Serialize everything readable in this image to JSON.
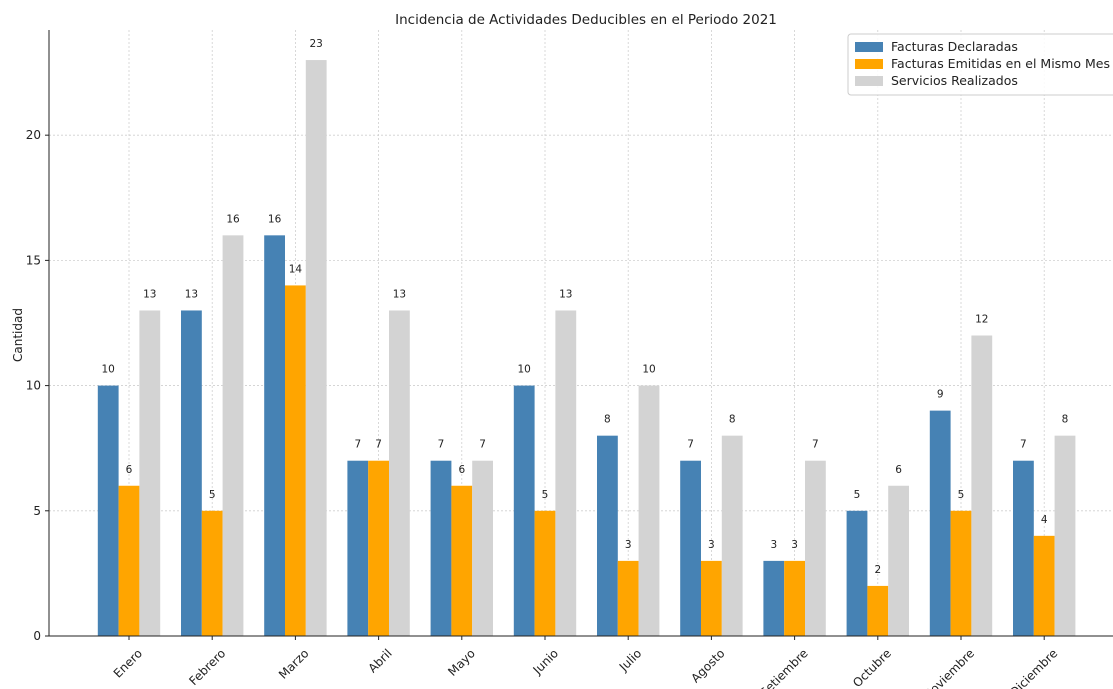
{
  "chart_data": {
    "type": "bar",
    "title": "Incidencia de Actividades Deducibles en el Periodo 2021",
    "xlabel": "",
    "ylabel": "Cantidad",
    "ylim": [
      0,
      24.2
    ],
    "yticks": [
      0,
      5,
      10,
      15,
      20
    ],
    "grid": true,
    "legend_position": "top-right",
    "categories": [
      "Enero",
      "Febrero",
      "Marzo",
      "Abril",
      "Mayo",
      "Junio",
      "Julio",
      "Agosto",
      "Setiembre",
      "Octubre",
      "Noviembre",
      "Diciembre"
    ],
    "series": [
      {
        "name": "Facturas Declaradas",
        "color": "#4682b4",
        "values": [
          10,
          13,
          16,
          7,
          7,
          10,
          8,
          7,
          3,
          5,
          9,
          7
        ]
      },
      {
        "name": "Facturas Emitidas en el Mismo Mes",
        "color": "#ffa500",
        "values": [
          6,
          5,
          14,
          7,
          6,
          5,
          3,
          3,
          3,
          2,
          5,
          4
        ]
      },
      {
        "name": "Servicios Realizados",
        "color": "#d3d3d3",
        "values": [
          13,
          16,
          23,
          13,
          7,
          13,
          10,
          8,
          7,
          6,
          12,
          8
        ]
      }
    ]
  }
}
